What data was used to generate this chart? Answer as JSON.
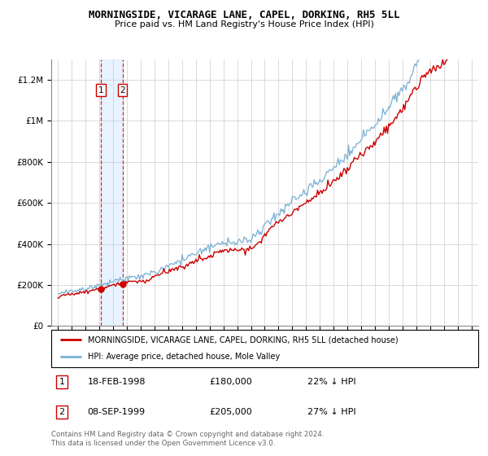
{
  "title": "MORNINGSIDE, VICARAGE LANE, CAPEL, DORKING, RH5 5LL",
  "subtitle": "Price paid vs. HM Land Registry's House Price Index (HPI)",
  "sale1_date": "18-FEB-1998",
  "sale1_price": 180000,
  "sale1_pct": "22% ↓ HPI",
  "sale2_date": "08-SEP-1999",
  "sale2_price": 205000,
  "sale2_pct": "27% ↓ HPI",
  "legend_line1": "MORNINGSIDE, VICARAGE LANE, CAPEL, DORKING, RH5 5LL (detached house)",
  "legend_line2": "HPI: Average price, detached house, Mole Valley",
  "footer": "Contains HM Land Registry data © Crown copyright and database right 2024.\nThis data is licensed under the Open Government Licence v3.0.",
  "hpi_color": "#7ab0d4",
  "sale_color": "#cc0000",
  "ylim": [
    0,
    1300000
  ],
  "yticks": [
    0,
    200000,
    400000,
    600000,
    800000,
    1000000,
    1200000
  ],
  "ytick_labels": [
    "£0",
    "£200K",
    "£400K",
    "£600K",
    "£800K",
    "£1M",
    "£1.2M"
  ],
  "sale1_x_year": 1998.12,
  "sale2_x_year": 1999.67,
  "xmin": 1994.5,
  "xmax": 2025.5
}
